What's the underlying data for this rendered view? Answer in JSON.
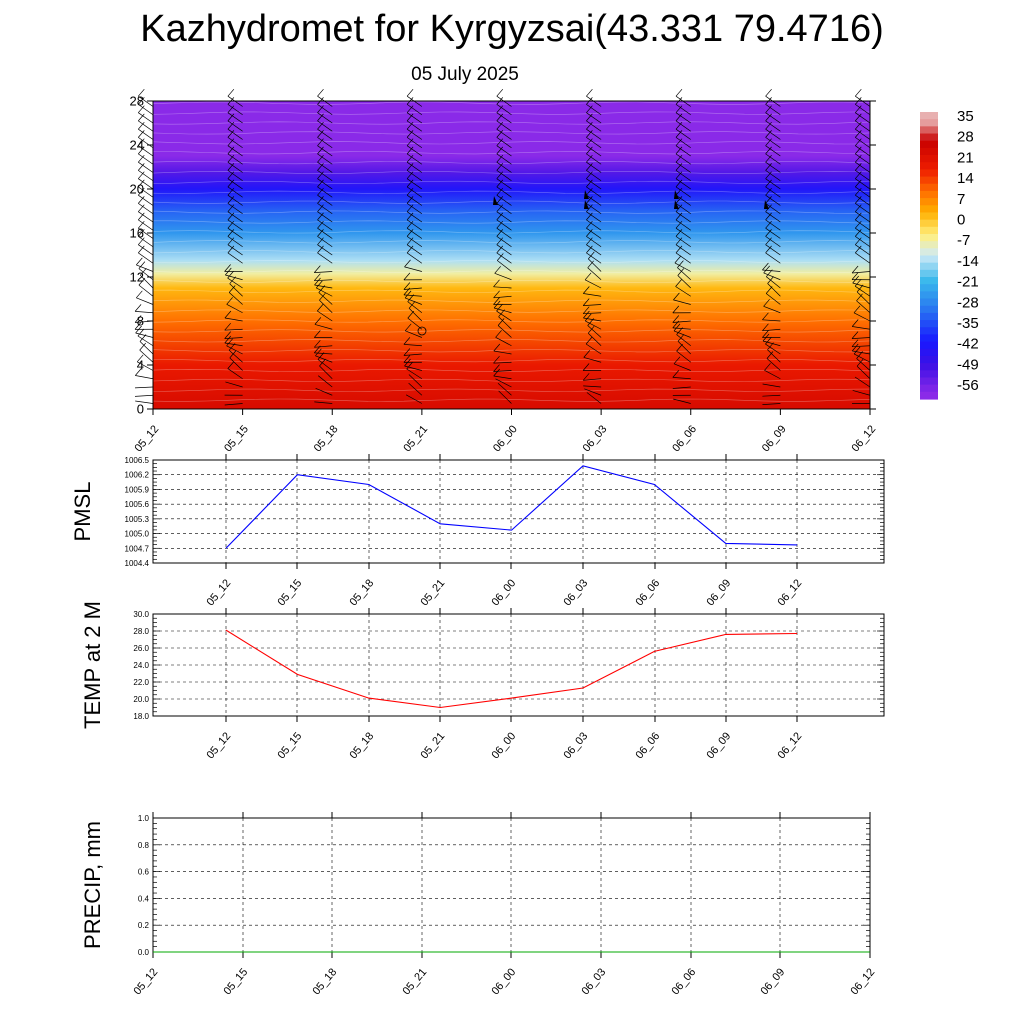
{
  "header": {
    "title": "Kazhydromet for Kyrgyzsai(43.331 79.4716)",
    "date": "05 July 2025"
  },
  "chart_data": [
    {
      "type": "heatmap",
      "title": "Kazhydromet for Kyrgyzsai(43.331 79.4716)",
      "subtitle": "05 July 2025",
      "x_labels": [
        "05_12",
        "05_15",
        "05_18",
        "05_21",
        "06_00",
        "06_03",
        "06_06",
        "06_09",
        "06_12"
      ],
      "y_ticks": [
        0,
        4,
        8,
        12,
        16,
        20,
        24,
        28
      ],
      "ylim": [
        0,
        28
      ],
      "colorbar": {
        "labels": [
          "35",
          "28",
          "21",
          "14",
          "7",
          "0",
          "-7",
          "-14",
          "-21",
          "-28",
          "-35",
          "-42",
          "-49",
          "-56"
        ],
        "stops": [
          {
            "v": 35,
            "color": "#e8b0b0"
          },
          {
            "v": 28,
            "color": "#c80000"
          },
          {
            "v": 18,
            "color": "#ee1c00"
          },
          {
            "v": 10,
            "color": "#ff7000"
          },
          {
            "v": 3,
            "color": "#ffb000"
          },
          {
            "v": -5,
            "color": "#fff080"
          },
          {
            "v": -12,
            "color": "#cfeaf6"
          },
          {
            "v": -21,
            "color": "#38b8ec"
          },
          {
            "v": -30,
            "color": "#2a7cf0"
          },
          {
            "v": -42,
            "color": "#1818ff"
          },
          {
            "v": -50,
            "color": "#3c10e6"
          },
          {
            "v": -60,
            "color": "#8a2ae8"
          }
        ]
      },
      "temperature_profile": [
        {
          "level": 0,
          "value": 24
        },
        {
          "level": 4,
          "value": 19
        },
        {
          "level": 8,
          "value": 10
        },
        {
          "level": 11,
          "value": 2
        },
        {
          "level": 12.3,
          "value": -7
        },
        {
          "level": 13.5,
          "value": -14
        },
        {
          "level": 16,
          "value": -26
        },
        {
          "level": 18,
          "value": -33
        },
        {
          "level": 20,
          "value": -44
        },
        {
          "level": 21.5,
          "value": -53
        },
        {
          "level": 23,
          "value": -60
        },
        {
          "level": 28,
          "value": -62
        }
      ]
    },
    {
      "type": "line",
      "ylabel": "PMSL",
      "categories": [
        "05_12",
        "05_15",
        "05_18",
        "05_21",
        "06_00",
        "06_03",
        "06_06",
        "06_09",
        "06_12"
      ],
      "series": [
        {
          "values": [
            1004.7,
            1006.2,
            1006.0,
            1005.2,
            1005.07,
            1006.38,
            1006.0,
            1004.8,
            1004.77
          ],
          "color": "#0000ff"
        }
      ],
      "y_ticks": [
        "1004.4",
        "1004.7",
        "1005.0",
        "1005.3",
        "1005.6",
        "1005.9",
        "1006.2",
        "1006.5"
      ],
      "ylim": [
        1004.4,
        1006.5
      ]
    },
    {
      "type": "line",
      "ylabel": "TEMP at 2 M",
      "categories": [
        "05_12",
        "05_15",
        "05_18",
        "05_21",
        "06_00",
        "06_03",
        "06_06",
        "06_09",
        "06_12"
      ],
      "series": [
        {
          "values": [
            28.1,
            22.9,
            20.1,
            19.0,
            20.1,
            21.3,
            25.6,
            27.6,
            27.7
          ],
          "color": "#ff0000"
        }
      ],
      "y_ticks": [
        "18.0",
        "20.0",
        "22.0",
        "24.0",
        "26.0",
        "28.0",
        "30.0"
      ],
      "ylim": [
        18.0,
        30.0
      ]
    },
    {
      "type": "line",
      "ylabel": "PRECIP, mm",
      "categories": [
        "05_12",
        "05_15",
        "05_18",
        "05_21",
        "06_00",
        "06_03",
        "06_06",
        "06_09",
        "06_12"
      ],
      "series": [
        {
          "values": [
            0,
            0,
            0,
            0,
            0,
            0,
            0,
            0,
            0
          ],
          "color": "#00aa00"
        }
      ],
      "y_ticks": [
        "0.0",
        "0.2",
        "0.4",
        "0.6",
        "0.8",
        "1.0"
      ],
      "ylim": [
        0.0,
        1.0
      ]
    }
  ]
}
